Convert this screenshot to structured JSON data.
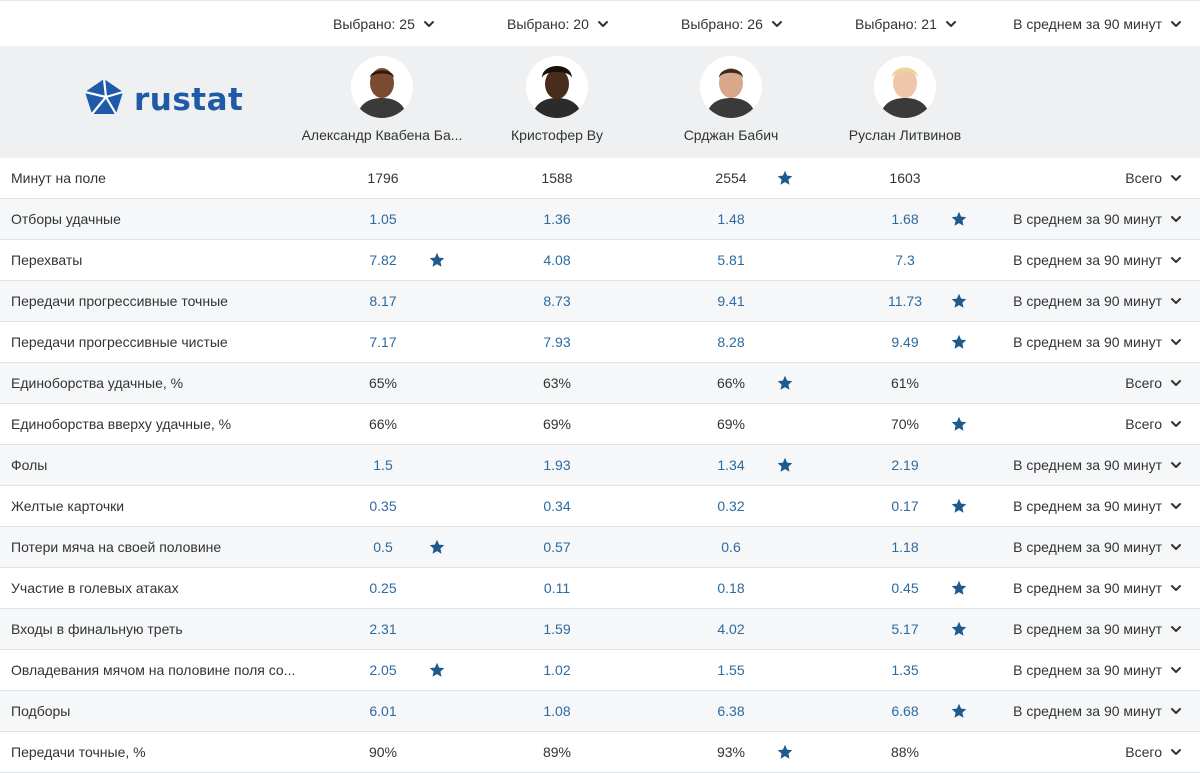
{
  "colors": {
    "accent": "#1f5aa8",
    "link": "#2d6a9f",
    "star": "#1f5a8c",
    "header_bg": "#eef0f2"
  },
  "top_selectors": [
    "Выбрано: 25",
    "Выбрано: 20",
    "Выбрано: 26",
    "Выбрано: 21"
  ],
  "global_mode": "В среднем за 90 минут",
  "logo": {
    "text": "rustat"
  },
  "players": [
    {
      "name": "Александр Квабена Ба...",
      "icon": "player-photo-icon"
    },
    {
      "name": "Кристофер Ву",
      "icon": "player-photo-icon"
    },
    {
      "name": "Срджан Бабич",
      "icon": "player-photo-icon"
    },
    {
      "name": "Руслан Литвинов",
      "icon": "player-photo-icon"
    }
  ],
  "rows": [
    {
      "label": "Минут на поле",
      "values": [
        "1796",
        "1588",
        "2554",
        "1603"
      ],
      "best": 2,
      "mode": "Всего"
    },
    {
      "label": "Отборы удачные",
      "values": [
        "1.05",
        "1.36",
        "1.48",
        "1.68"
      ],
      "best": 3,
      "mode": "В среднем за 90 минут"
    },
    {
      "label": "Перехваты",
      "values": [
        "7.82",
        "4.08",
        "5.81",
        "7.3"
      ],
      "best": 0,
      "mode": "В среднем за 90 минут"
    },
    {
      "label": "Передачи прогрессивные точные",
      "values": [
        "8.17",
        "8.73",
        "9.41",
        "11.73"
      ],
      "best": 3,
      "mode": "В среднем за 90 минут"
    },
    {
      "label": "Передачи прогрессивные чистые",
      "values": [
        "7.17",
        "7.93",
        "8.28",
        "9.49"
      ],
      "best": 3,
      "mode": "В среднем за 90 минут"
    },
    {
      "label": "Единоборства удачные, %",
      "values": [
        "65%",
        "63%",
        "66%",
        "61%"
      ],
      "best": 2,
      "mode": "Всего"
    },
    {
      "label": "Единоборства вверху удачные, %",
      "values": [
        "66%",
        "69%",
        "69%",
        "70%"
      ],
      "best": 3,
      "mode": "Всего"
    },
    {
      "label": "Фолы",
      "values": [
        "1.5",
        "1.93",
        "1.34",
        "2.19"
      ],
      "best": 2,
      "mode": "В среднем за 90 минут"
    },
    {
      "label": "Желтые карточки",
      "values": [
        "0.35",
        "0.34",
        "0.32",
        "0.17"
      ],
      "best": 3,
      "mode": "В среднем за 90 минут"
    },
    {
      "label": "Потери мяча на своей половине",
      "values": [
        "0.5",
        "0.57",
        "0.6",
        "1.18"
      ],
      "best": 0,
      "mode": "В среднем за 90 минут"
    },
    {
      "label": "Участие в голевых атаках",
      "values": [
        "0.25",
        "0.11",
        "0.18",
        "0.45"
      ],
      "best": 3,
      "mode": "В среднем за 90 минут"
    },
    {
      "label": "Входы в финальную треть",
      "values": [
        "2.31",
        "1.59",
        "4.02",
        "5.17"
      ],
      "best": 3,
      "mode": "В среднем за 90 минут"
    },
    {
      "label": "Овладевания мячом на половине поля со...",
      "values": [
        "2.05",
        "1.02",
        "1.55",
        "1.35"
      ],
      "best": 0,
      "mode": "В среднем за 90 минут"
    },
    {
      "label": "Подборы",
      "values": [
        "6.01",
        "1.08",
        "6.38",
        "6.68"
      ],
      "best": 3,
      "mode": "В среднем за 90 минут"
    },
    {
      "label": "Передачи точные, %",
      "values": [
        "90%",
        "89%",
        "93%",
        "88%"
      ],
      "best": 2,
      "mode": "Всего"
    }
  ]
}
